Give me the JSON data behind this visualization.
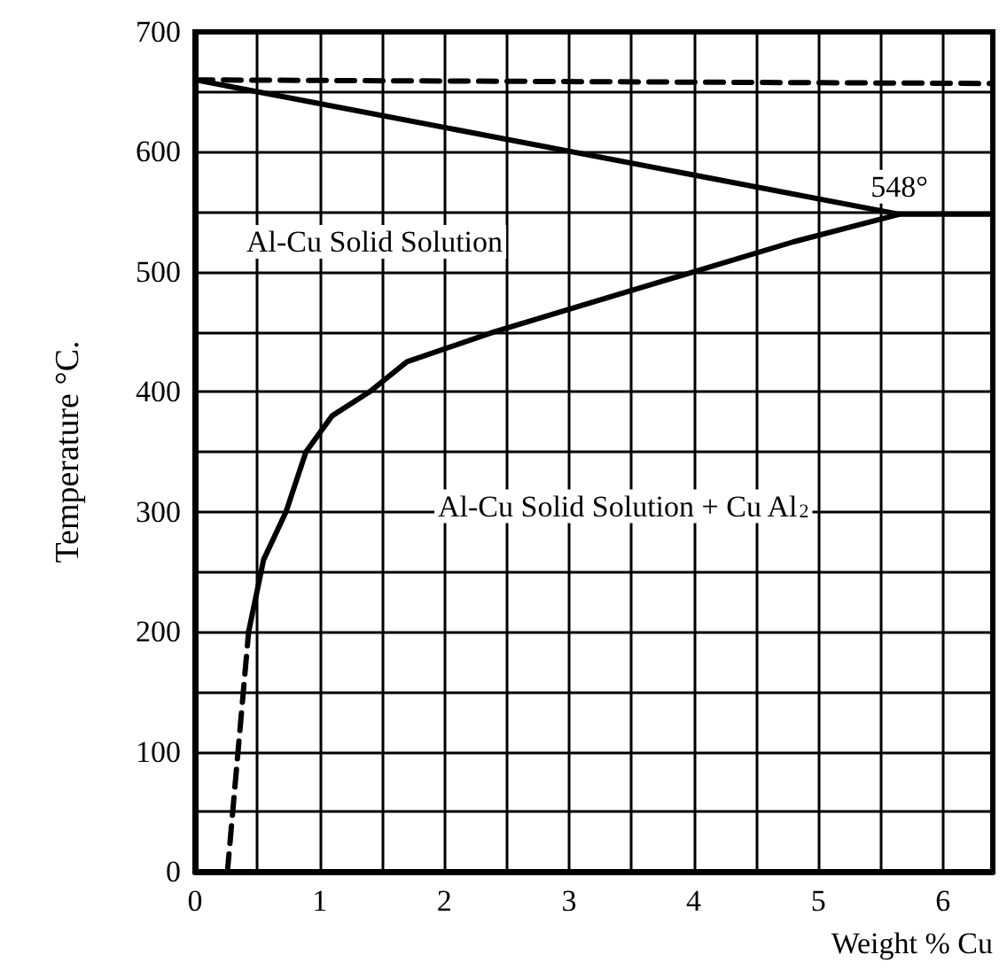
{
  "chart_data": {
    "type": "line",
    "xlabel": "Weight % Cu",
    "ylabel": "Temperature °C.",
    "xlim": [
      0,
      6.4
    ],
    "ylim": [
      0,
      700
    ],
    "xticks": [
      0,
      {
        "value": 0.5,
        "label": null
      },
      1,
      {
        "value": 1.5,
        "label": null
      },
      2,
      {
        "value": 2.5,
        "label": null
      },
      3,
      {
        "value": 3.5,
        "label": null
      },
      4,
      {
        "value": 4.5,
        "label": null
      },
      5,
      {
        "value": 5.5,
        "label": null
      },
      6
    ],
    "yticks": [
      0,
      {
        "value": 50,
        "label": null
      },
      100,
      {
        "value": 150,
        "label": null
      },
      200,
      {
        "value": 250,
        "label": null
      },
      300,
      {
        "value": 350,
        "label": null
      },
      400,
      {
        "value": 450,
        "label": null
      },
      500,
      {
        "value": 550,
        "label": null
      },
      600,
      {
        "value": 650,
        "label": null
      },
      700
    ],
    "grid": true,
    "marker": "none",
    "series": [
      {
        "color": "#000000",
        "line_style": "solid",
        "x": [
          0,
          5.65,
          6.4
        ],
        "values": [
          660,
          548,
          548
        ]
      },
      {
        "color": "#000000",
        "line_style": "dashed",
        "x": [
          0,
          6.4
        ],
        "values": [
          660,
          657
        ]
      },
      {
        "color": "#000000",
        "line_style": "solid",
        "x": [
          0.43,
          0.55,
          0.73,
          0.89,
          1.1,
          1.4,
          1.7,
          2.4,
          3.2,
          4.0,
          4.8,
          5.65
        ],
        "values": [
          200,
          260,
          300,
          350,
          380,
          400,
          425,
          450,
          475,
          500,
          525,
          548
        ]
      },
      {
        "color": "#000000",
        "line_style": "dashed",
        "x": [
          0.26,
          0.43
        ],
        "values": [
          0,
          200
        ]
      }
    ],
    "annotations": [
      {
        "text": "548°",
        "x": 5.65,
        "y": 548
      },
      "Al-Cu Solid Solution",
      "Al-Cu Solid Solution + Cu Al$_{2}$"
    ]
  }
}
